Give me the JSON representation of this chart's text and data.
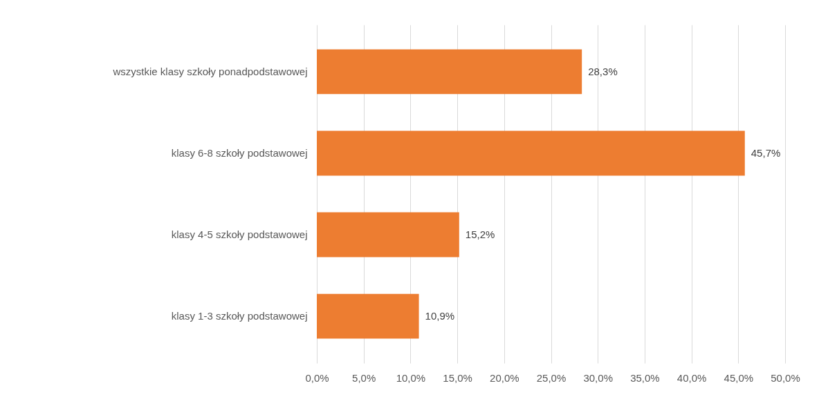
{
  "chart_data": {
    "type": "bar",
    "orientation": "horizontal",
    "categories": [
      "wszystkie klasy szkoły ponadpodstawowej",
      "klasy 6-8 szkoły podstawowej",
      "klasy 4-5 szkoły podstawowej",
      "klasy 1-3 szkoły podstawowej"
    ],
    "values": [
      28.3,
      45.7,
      15.2,
      10.9
    ],
    "value_labels": [
      "28,3%",
      "45,7%",
      "15,2%",
      "10,9%"
    ],
    "color": "#ed7d31",
    "xlim": [
      0,
      50
    ],
    "xticks": [
      {
        "value": 0,
        "label": "0,0%"
      },
      {
        "value": 5,
        "label": "5,0%"
      },
      {
        "value": 10,
        "label": "10,0%"
      },
      {
        "value": 15,
        "label": "15,0%"
      },
      {
        "value": 20,
        "label": "20,0%"
      },
      {
        "value": 25,
        "label": "25,0%"
      },
      {
        "value": 30,
        "label": "30,0%"
      },
      {
        "value": 35,
        "label": "35,0%"
      },
      {
        "value": 40,
        "label": "40,0%"
      },
      {
        "value": 45,
        "label": "45,0%"
      },
      {
        "value": 50,
        "label": "50,0%"
      }
    ],
    "grid": "x"
  }
}
